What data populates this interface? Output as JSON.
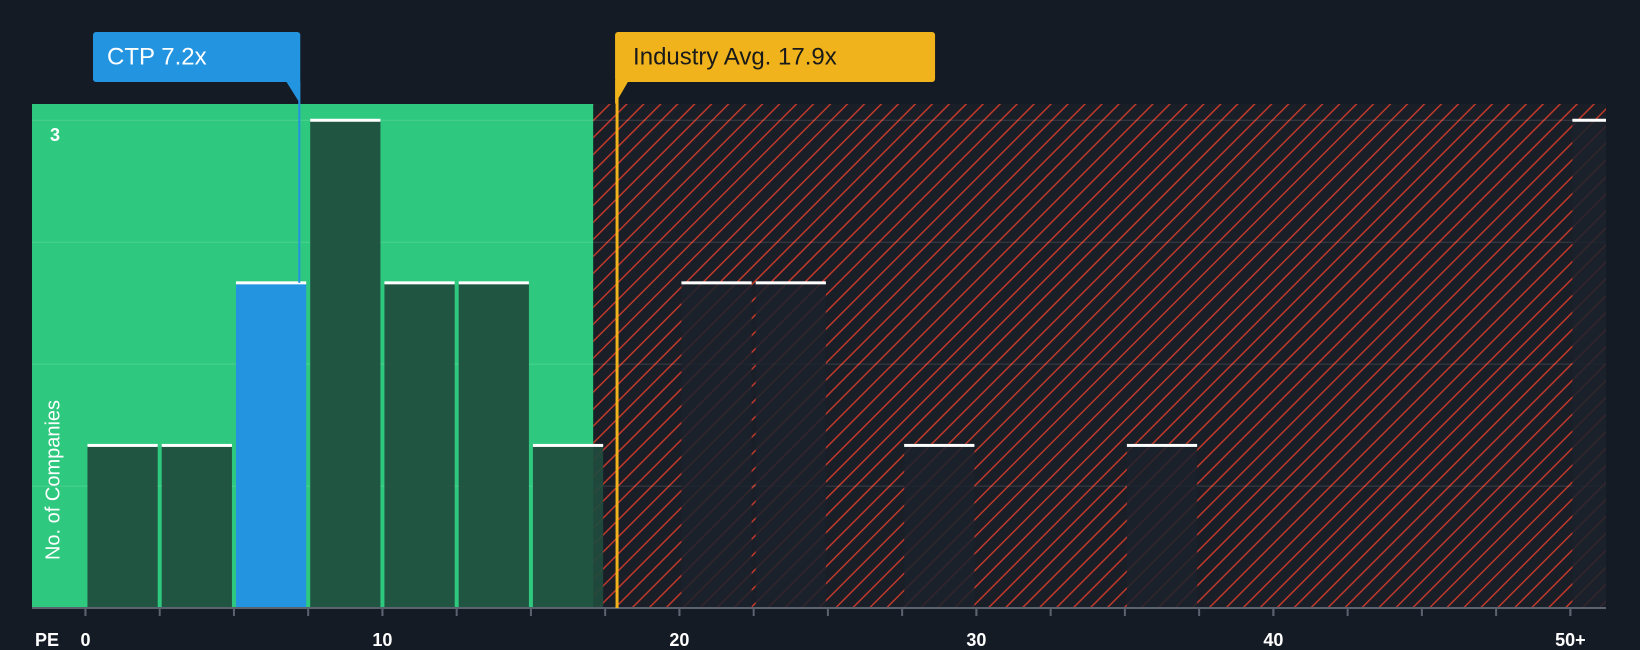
{
  "chart_data": {
    "type": "histogram",
    "x_label": "PE",
    "y_label": "No. of Companies",
    "bins": [
      0,
      2.5,
      5,
      7.5,
      10,
      12.5,
      15,
      17.5,
      20,
      22.5,
      25,
      27.5,
      30,
      32.5,
      35,
      37.5,
      40,
      42.5,
      45,
      47.5,
      50,
      52.5
    ],
    "values": [
      1,
      1,
      2,
      3,
      2,
      2,
      1,
      0,
      2,
      2,
      0,
      1,
      0,
      0,
      1,
      0,
      0,
      0,
      0,
      0,
      3
    ],
    "xlim": [
      -1.8,
      51.2
    ],
    "ylim": [
      0,
      3.1
    ],
    "xticks": [
      0,
      10,
      20,
      30,
      40,
      {
        "value": 50,
        "label": "50+"
      }
    ],
    "yticks": [
      3
    ],
    "ygrid": [
      0.75,
      1.5,
      2.25,
      3
    ],
    "green_zone_max": 17.1,
    "company": {
      "label": "CTP 7.2x",
      "value": 7.2,
      "color": "#2394e0"
    },
    "industry_avg": {
      "label": "Industry Avg. 17.9x",
      "value": 17.9,
      "color": "#f0b31c"
    },
    "bar_color": "#1f4b3d",
    "zone_color": "#2ec97e",
    "hatch_color": "#c0392b"
  }
}
